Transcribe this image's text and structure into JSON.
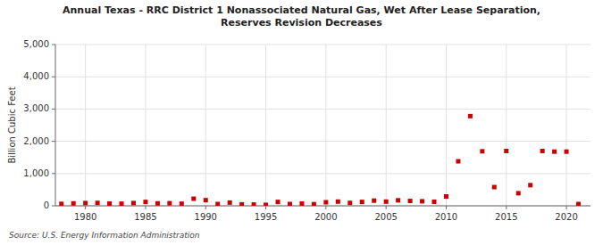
{
  "chart_data": {
    "type": "scatter",
    "title": "Annual Texas - RRC District 1 Nonassociated Natural Gas, Wet After Lease Separation,\nReserves Revision Decreases",
    "y_label": "Billion Cubic Feet",
    "source": "Source: U.S. Energy Information Administration",
    "color": "#cc0000",
    "marker": "square",
    "grid": true,
    "x": [
      1978,
      1979,
      1980,
      1981,
      1982,
      1983,
      1984,
      1985,
      1986,
      1987,
      1988,
      1989,
      1990,
      1991,
      1992,
      1993,
      1994,
      1995,
      1996,
      1997,
      1998,
      1999,
      2000,
      2001,
      2002,
      2003,
      2004,
      2005,
      2006,
      2007,
      2008,
      2009,
      2010,
      2011,
      2012,
      2013,
      2014,
      2015,
      2016,
      2017,
      2018,
      2019,
      2020,
      2021
    ],
    "values": [
      60,
      75,
      85,
      90,
      70,
      65,
      85,
      120,
      75,
      80,
      65,
      220,
      175,
      55,
      100,
      45,
      40,
      30,
      120,
      55,
      70,
      50,
      110,
      130,
      90,
      120,
      160,
      130,
      170,
      150,
      140,
      125,
      290,
      1380,
      2780,
      1690,
      580,
      1700,
      390,
      640,
      1700,
      1680,
      1680,
      55
    ],
    "xlim": [
      1977.5,
      2022
    ],
    "xticks": [
      1980,
      1985,
      1990,
      1995,
      2000,
      2005,
      2010,
      2015,
      2020
    ],
    "ylim": [
      0,
      5000
    ],
    "yticks": [
      0,
      {
        "value": 1000,
        "label": "1,000"
      },
      {
        "value": 2000,
        "label": "2,000"
      },
      {
        "value": 3000,
        "label": "3,000"
      },
      {
        "value": 4000,
        "label": "4,000"
      },
      {
        "value": 5000,
        "label": "5,000"
      }
    ]
  }
}
